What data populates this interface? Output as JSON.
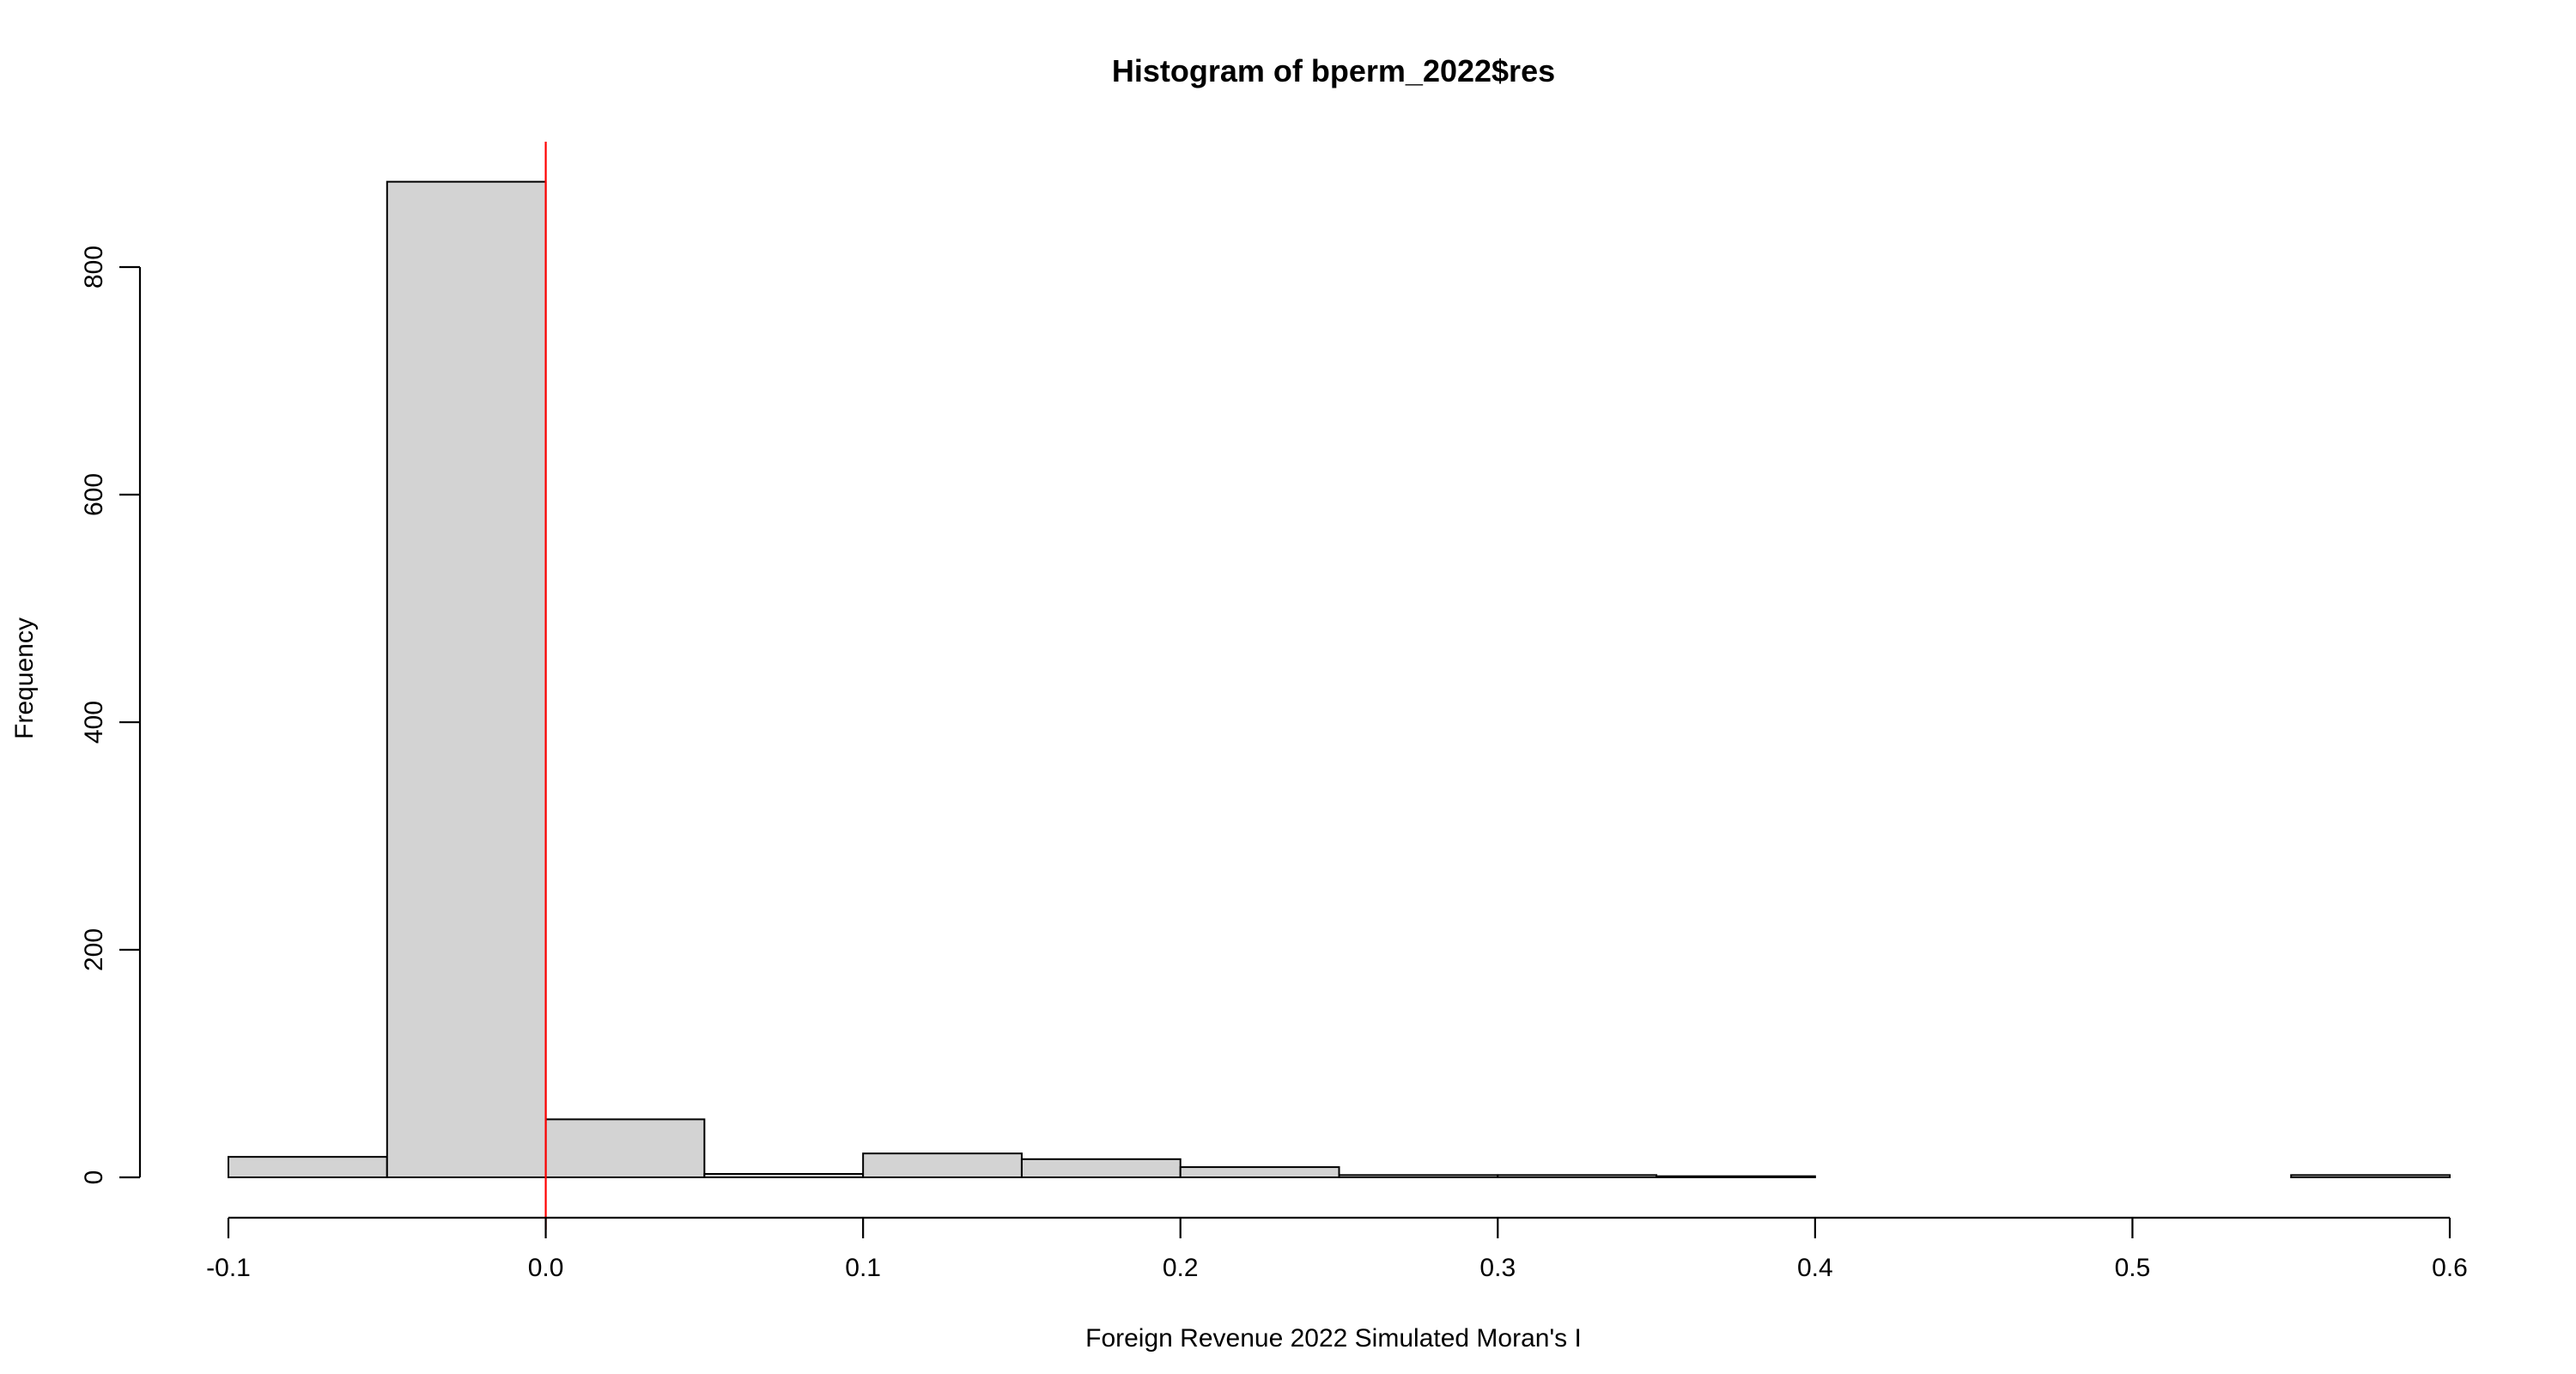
{
  "chart_data": {
    "type": "bar",
    "title": "Histogram of bperm_2022$res",
    "xlabel": "Foreign Revenue 2022 Simulated Moran's I",
    "ylabel": "Frequency",
    "xlim": [
      -0.1,
      0.6
    ],
    "ylim": [
      0,
      900
    ],
    "x_ticks": [
      -0.1,
      0.0,
      0.1,
      0.2,
      0.3,
      0.4,
      0.5,
      0.6
    ],
    "x_tick_labels": [
      "-0.1",
      "0.0",
      "0.1",
      "0.2",
      "0.3",
      "0.4",
      "0.5",
      "0.6"
    ],
    "y_ticks": [
      0,
      200,
      400,
      600,
      800
    ],
    "y_tick_labels": [
      "0",
      "200",
      "400",
      "600",
      "800"
    ],
    "bins": [
      {
        "start": -0.1,
        "end": -0.05,
        "count": 18
      },
      {
        "start": -0.05,
        "end": 0.0,
        "count": 875
      },
      {
        "start": 0.0,
        "end": 0.05,
        "count": 51
      },
      {
        "start": 0.05,
        "end": 0.1,
        "count": 3
      },
      {
        "start": 0.1,
        "end": 0.15,
        "count": 21
      },
      {
        "start": 0.15,
        "end": 0.2,
        "count": 16
      },
      {
        "start": 0.2,
        "end": 0.25,
        "count": 9
      },
      {
        "start": 0.25,
        "end": 0.3,
        "count": 2
      },
      {
        "start": 0.3,
        "end": 0.35,
        "count": 2
      },
      {
        "start": 0.35,
        "end": 0.4,
        "count": 1
      },
      {
        "start": 0.4,
        "end": 0.45,
        "count": 0
      },
      {
        "start": 0.45,
        "end": 0.5,
        "count": 0
      },
      {
        "start": 0.5,
        "end": 0.55,
        "count": 0
      },
      {
        "start": 0.55,
        "end": 0.6,
        "count": 2
      }
    ],
    "reference_line": {
      "x": 0.0,
      "color": "#ff0000"
    },
    "bar_fill": "#d3d3d3",
    "grid": false
  }
}
